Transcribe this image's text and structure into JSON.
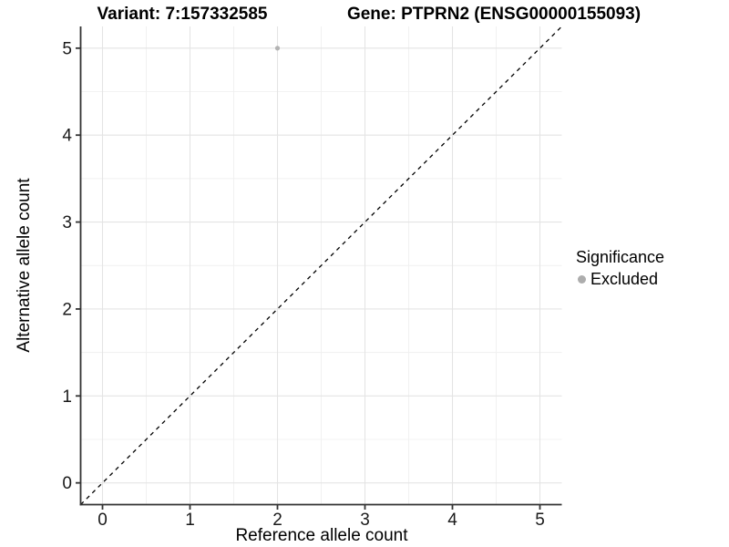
{
  "figure": {
    "title_left": "Variant: 7:157332585",
    "title_right": "Gene: PTPRN2 (ENSG00000155093)"
  },
  "legend": {
    "title": "Significance",
    "items": [
      {
        "label": "Excluded",
        "marker": "circle",
        "color": "#adadad"
      }
    ]
  },
  "chart_data": {
    "type": "scatter",
    "title": "Variant: 7:157332585 — Gene: PTPRN2 (ENSG00000155093)",
    "xlabel": "Reference allele count",
    "ylabel": "Alternative allele count",
    "xlim": [
      -0.25,
      5.25
    ],
    "ylim": [
      -0.25,
      5.25
    ],
    "x_ticks": [
      0,
      1,
      2,
      3,
      4,
      5
    ],
    "y_ticks": [
      0,
      1,
      2,
      3,
      4,
      5
    ],
    "x_minor": [
      0.5,
      1.5,
      2.5,
      3.5,
      4.5
    ],
    "y_minor": [
      0.5,
      1.5,
      2.5,
      3.5,
      4.5
    ],
    "grid": "major+minor",
    "legend_position": "right",
    "series": [
      {
        "name": "Excluded",
        "color": "#b3b3b3",
        "marker": "circle",
        "points": [
          {
            "x": 2,
            "y": 5
          }
        ]
      }
    ],
    "reference_line": {
      "kind": "identity",
      "from": [
        -0.25,
        -0.25
      ],
      "to": [
        5.25,
        5.25
      ],
      "style": "dashed",
      "color": "#000000"
    }
  },
  "style": {
    "background": "#ffffff",
    "grid_major": "#e4e4e4",
    "grid_minor": "#f0f0f0",
    "axis_line": "#333333",
    "tick_label_color": "#1a1a1a",
    "point_color": "#b3b3b3"
  }
}
